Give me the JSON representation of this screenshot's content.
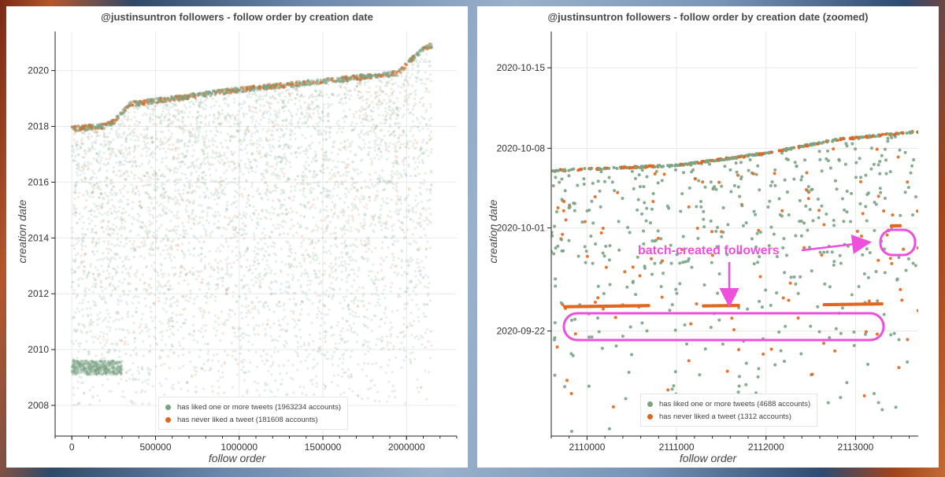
{
  "chart_data": [
    {
      "type": "scatter",
      "title": "@justinsuntron followers - follow order by creation date",
      "xlabel": "follow order",
      "ylabel": "creation date",
      "xlim": [
        -100000,
        2300000
      ],
      "ylim": [
        2006.9,
        2021.4
      ],
      "x_ticks": [
        0,
        500000,
        1000000,
        1500000,
        2000000
      ],
      "x_tick_labels": [
        "0",
        "500000",
        "1000000",
        "1500000",
        "2000000"
      ],
      "y_ticks": [
        2008,
        2010,
        2012,
        2014,
        2016,
        2018,
        2020
      ],
      "y_tick_labels": [
        "2008",
        "2010",
        "2012",
        "2014",
        "2016",
        "2018",
        "2020"
      ],
      "grid": true,
      "legend_placement": "bottom-center",
      "upper_envelope": {
        "x": [
          0,
          100000,
          200000,
          260000,
          340000,
          500000,
          1000000,
          1500000,
          1950000,
          2000000,
          2050000,
          2100000,
          2150000
        ],
        "y": [
          2018.0,
          2018.05,
          2018.1,
          2018.3,
          2018.88,
          2019.0,
          2019.4,
          2019.7,
          2020.0,
          2020.3,
          2020.6,
          2020.85,
          2021.0
        ]
      },
      "series": [
        {
          "name": "has liked one or more tweets (1963234 accounts)",
          "color": "#7aa384"
        },
        {
          "name": "has never liked a tweet (181608 accounts)",
          "color": "#e1661f"
        }
      ]
    },
    {
      "type": "scatter",
      "title": "@justinsuntron followers - follow order by creation date (zoomed)",
      "xlabel": "follow order",
      "ylabel": "creation date",
      "xlim": [
        2109600,
        2113700
      ],
      "ylim": [
        2020.7015,
        2020.7985
      ],
      "x_ticks": [
        2110000,
        2111000,
        2112000,
        2113000
      ],
      "x_tick_labels": [
        "2110000",
        "2111000",
        "2112000",
        "2113000"
      ],
      "y_ticks": [
        2020.7267,
        2020.7514,
        2020.7705,
        2020.7898
      ],
      "y_tick_labels": [
        "2020-09-22",
        "2020-10-01",
        "2020-10-08",
        "2020-10-15"
      ],
      "grid": true,
      "legend_placement": "bottom-center",
      "upper_envelope": {
        "x": [
          2109600,
          2111000,
          2112000,
          2112800,
          2113700
        ],
        "y": [
          2020.7653,
          2020.7666,
          2020.7695,
          2020.7728,
          2020.7747
        ]
      },
      "batch_rows": [
        {
          "x": [
            2109750,
            2110700
          ],
          "y": 2020.7325
        },
        {
          "x": [
            2111300,
            2111700
          ],
          "y": 2020.7327
        },
        {
          "x": [
            2112650,
            2113300
          ],
          "y": 2020.733
        },
        {
          "x": [
            2113400,
            2113500
          ],
          "y": 2020.7519
        }
      ],
      "series": [
        {
          "name": "has liked one or more tweets (4688 accounts)",
          "color": "#7aa384"
        },
        {
          "name": "has never liked a tweet (1312 accounts)",
          "color": "#e1661f"
        }
      ],
      "annotation": "batch-created followers",
      "annotation_color": "#ee4fdd"
    }
  ]
}
